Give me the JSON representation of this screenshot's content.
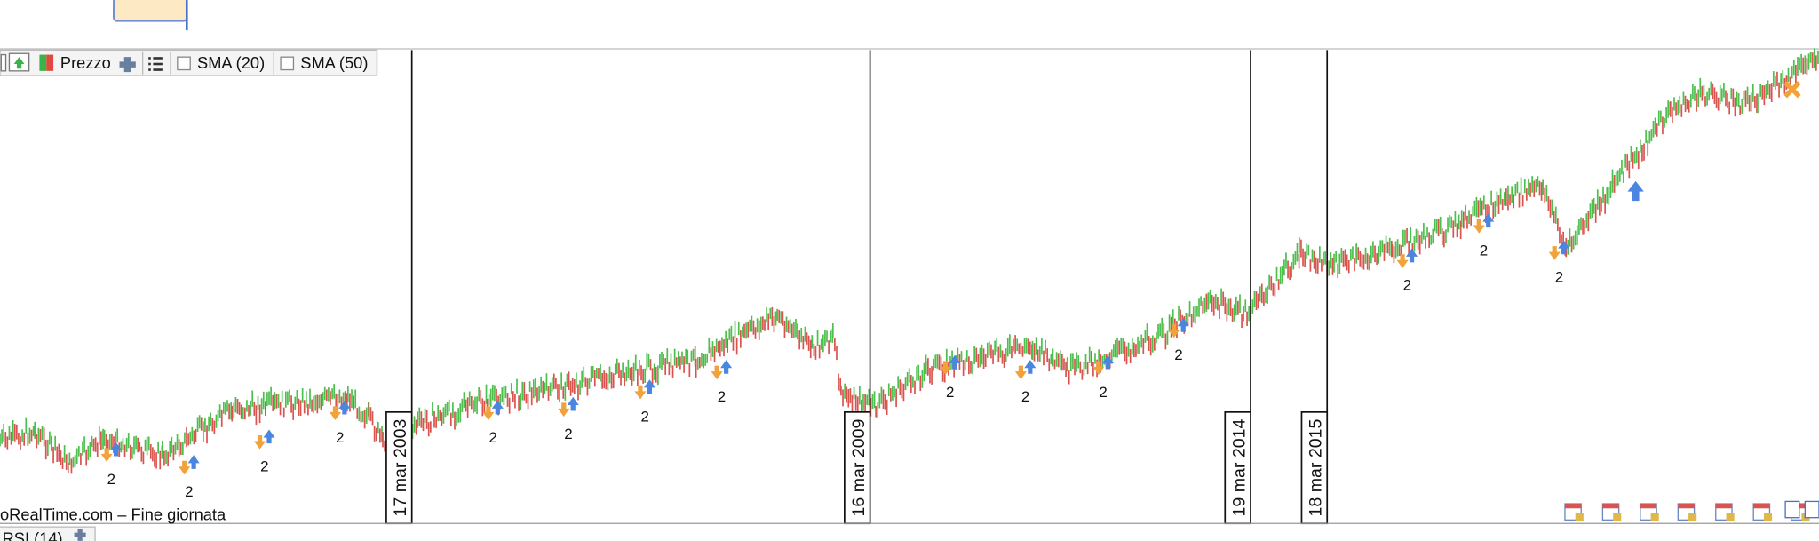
{
  "toolbar": {
    "price": "Prezzo",
    "indicators": [
      "SMA (20)",
      "SMA (50)"
    ]
  },
  "events": [
    "17 mar 2003",
    "16 mar 2009",
    "19 mar 2014",
    "18 mar 2015"
  ],
  "signals": [
    "2",
    "2",
    "2",
    "2",
    "2",
    "2",
    "2",
    "2",
    "2",
    "2",
    "2",
    "2",
    "2",
    "2",
    "2"
  ],
  "footer": {
    "source": "oRealTime.com – Fine giornata"
  },
  "panel": {
    "title": "RSI (14)"
  }
}
